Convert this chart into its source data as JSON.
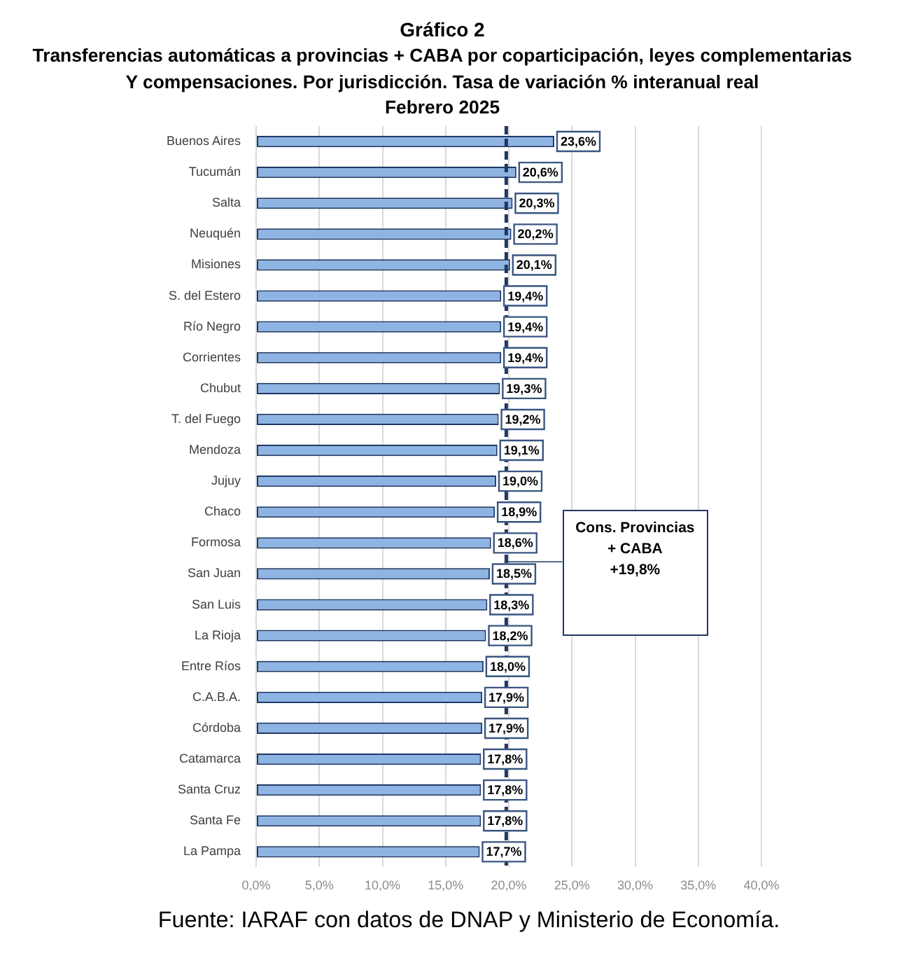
{
  "chart_data": {
    "type": "bar",
    "orientation": "horizontal",
    "title": "Gráfico 2",
    "subtitle": "Transferencias automáticas a provincias + CABA por coparticipación, leyes complementarias\nY compensaciones. Por jurisdicción. Tasa de variación % interanual real\nFebrero 2025",
    "categories": [
      "Buenos Aires",
      "Tucumán",
      "Salta",
      "Neuquén",
      "Misiones",
      "S. del Estero",
      "Río Negro",
      "Corrientes",
      "Chubut",
      "T. del Fuego",
      "Mendoza",
      "Jujuy",
      "Chaco",
      "Formosa",
      "San Juan",
      "San Luis",
      "La Rioja",
      "Entre Ríos",
      "C.A.B.A.",
      "Córdoba",
      "Catamarca",
      "Santa Cruz",
      "Santa Fe",
      "La Pampa"
    ],
    "values": [
      23.6,
      20.6,
      20.3,
      20.2,
      20.1,
      19.4,
      19.4,
      19.4,
      19.3,
      19.2,
      19.1,
      19.0,
      18.9,
      18.6,
      18.5,
      18.3,
      18.2,
      18.0,
      17.9,
      17.9,
      17.8,
      17.8,
      17.8,
      17.7
    ],
    "value_labels": [
      "23,6%",
      "20,6%",
      "20,3%",
      "20,2%",
      "20,1%",
      "19,4%",
      "19,4%",
      "19,4%",
      "19,3%",
      "19,2%",
      "19,1%",
      "19,0%",
      "18,9%",
      "18,6%",
      "18,5%",
      "18,3%",
      "18,2%",
      "18,0%",
      "17,9%",
      "17,9%",
      "17,8%",
      "17,8%",
      "17,8%",
      "17,7%"
    ],
    "color": "#8eb4e3",
    "xlim": [
      0,
      40
    ],
    "xticks": [
      {
        "value": 0,
        "label": "0,0%"
      },
      {
        "value": 5,
        "label": "5,0%"
      },
      {
        "value": 10,
        "label": "10,0%"
      },
      {
        "value": 15,
        "label": "15,0%"
      },
      {
        "value": 20,
        "label": "20,0%"
      },
      {
        "value": 25,
        "label": "25,0%"
      },
      {
        "value": 30,
        "label": "30,0%"
      },
      {
        "value": 35,
        "label": "35,0%"
      },
      {
        "value": 40,
        "label": "40,0%"
      }
    ],
    "grid": "x",
    "ref_lines": [
      {
        "axis": "x",
        "value": 19.8,
        "label": "Cons. Provincias\n+ CABA\n+19,8%",
        "color": "#1f3864",
        "line_style": "dashed"
      }
    ],
    "annotations": [
      "Fuente: IARAF con datos de DNAP y Ministerio de Economía."
    ]
  }
}
